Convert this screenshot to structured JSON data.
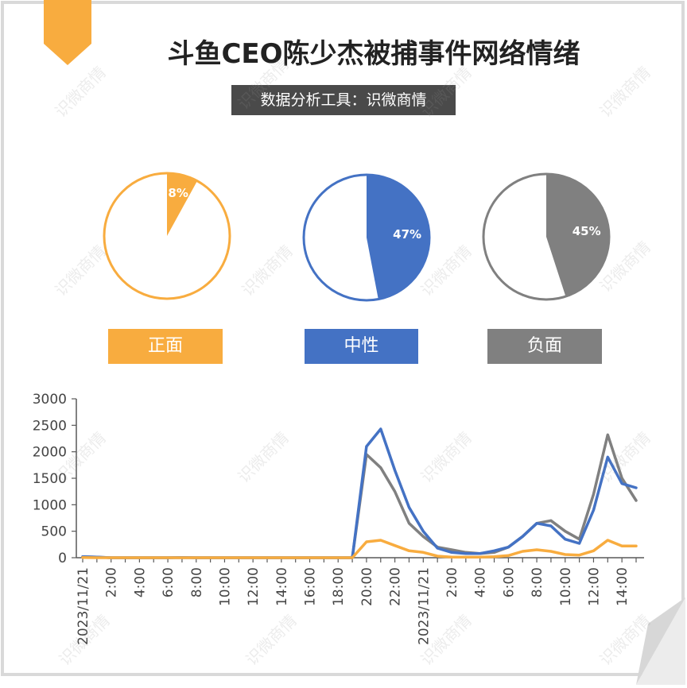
{
  "header": {
    "title": "斗鱼CEO陈少杰被捕事件网络情绪",
    "subtitle": "数据分析工具：识微商情"
  },
  "watermark": "识微商情",
  "colors": {
    "positive": "#f8ac3f",
    "neutral": "#4472c4",
    "negative": "#808080",
    "corner_ribbon": "#f8ac3f",
    "frame": "#d9d9d9",
    "axis": "#595959"
  },
  "pies": [
    {
      "name": "正面",
      "value": 8,
      "label": "8%",
      "color": "#f8ac3f"
    },
    {
      "name": "中性",
      "value": 47,
      "label": "47%",
      "color": "#4472c4"
    },
    {
      "name": "负面",
      "value": 45,
      "label": "45%",
      "color": "#808080"
    }
  ],
  "legend": [
    {
      "label": "正面",
      "color": "#f8ac3f"
    },
    {
      "label": "中性",
      "color": "#4472c4"
    },
    {
      "label": "负面",
      "color": "#808080"
    }
  ],
  "chart_data": {
    "type": "line",
    "ylim": [
      0,
      3000
    ],
    "yticks": [
      0,
      500,
      1000,
      1500,
      2000,
      2500,
      3000
    ],
    "x_labels": [
      "2023/11/21",
      "2:00",
      "4:00",
      "6:00",
      "8:00",
      "10:00",
      "12:00",
      "14:00",
      "16:00",
      "18:00",
      "20:00",
      "22:00",
      "2023/11/21",
      "2:00",
      "4:00",
      "6:00",
      "8:00",
      "10:00",
      "12:00",
      "14:00"
    ],
    "x_label_index": [
      0,
      2,
      4,
      6,
      8,
      10,
      12,
      14,
      16,
      18,
      20,
      22,
      24,
      26,
      28,
      30,
      32,
      34,
      36,
      38
    ],
    "series": [
      {
        "name": "负面",
        "color": "#808080",
        "values": [
          20,
          10,
          0,
          0,
          0,
          0,
          0,
          5,
          0,
          0,
          0,
          0,
          0,
          0,
          0,
          0,
          0,
          0,
          0,
          0,
          1950,
          1700,
          1250,
          650,
          400,
          200,
          150,
          100,
          80,
          100,
          200,
          400,
          650,
          700,
          500,
          350,
          1200,
          2320,
          1500,
          1080
        ]
      },
      {
        "name": "中性",
        "color": "#4472c4",
        "values": [
          20,
          10,
          0,
          0,
          0,
          0,
          0,
          5,
          0,
          0,
          0,
          0,
          0,
          0,
          0,
          0,
          0,
          0,
          0,
          0,
          2100,
          2430,
          1650,
          950,
          500,
          180,
          100,
          80,
          80,
          130,
          200,
          400,
          650,
          600,
          350,
          270,
          900,
          1900,
          1400,
          1320
        ]
      },
      {
        "name": "正面",
        "color": "#f8ac3f",
        "values": [
          5,
          0,
          0,
          0,
          0,
          0,
          0,
          0,
          0,
          0,
          0,
          0,
          0,
          0,
          0,
          0,
          0,
          0,
          0,
          0,
          300,
          330,
          230,
          130,
          100,
          30,
          10,
          10,
          10,
          20,
          40,
          120,
          150,
          120,
          60,
          50,
          130,
          330,
          220,
          220
        ]
      }
    ]
  }
}
